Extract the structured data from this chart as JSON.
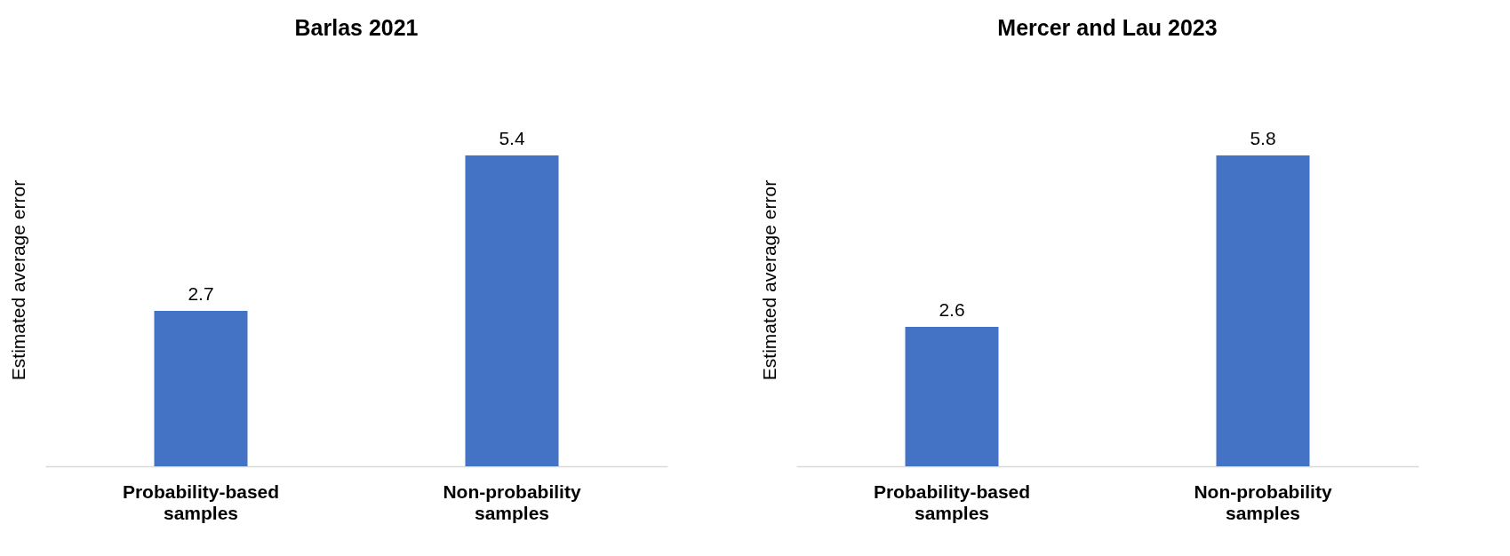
{
  "chart_data": [
    {
      "type": "bar",
      "title": "Barlas 2021",
      "ylabel": "Estimated average error",
      "categories": [
        "Probability-based samples",
        "Non-probability samples"
      ],
      "values": [
        2.7,
        5.4
      ],
      "color": "#4472c4",
      "data_labels": true,
      "grid": false,
      "tick_labels": "x"
    },
    {
      "type": "bar",
      "title": "Mercer and Lau 2023",
      "ylabel": "Estimated average error",
      "categories": [
        "Probability-based samples",
        "Non-probability samples"
      ],
      "values": [
        2.6,
        5.8
      ],
      "color": "#4472c4",
      "data_labels": true,
      "grid": false,
      "tick_labels": "x"
    }
  ]
}
